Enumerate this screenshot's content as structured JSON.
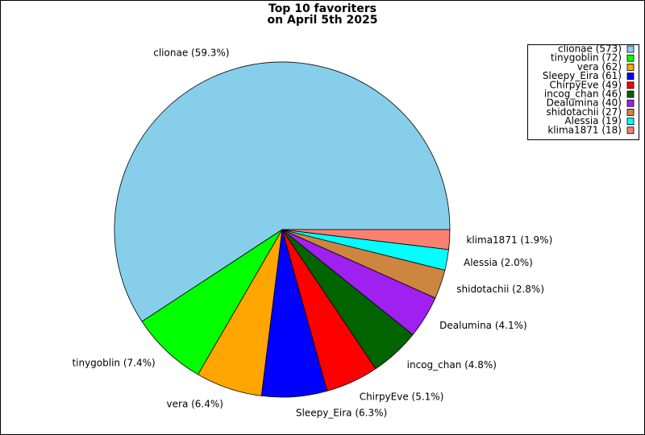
{
  "chart_data": {
    "type": "pie",
    "title": [
      "Top 10 favoriters",
      "on April 5th 2025"
    ],
    "categories": [
      "clionae",
      "tinygoblin",
      "vera",
      "Sleepy_Eira",
      "ChirpyEve",
      "incog_chan",
      "Dealumina",
      "shidotachii",
      "Alessia",
      "klima1871"
    ],
    "values": [
      59.3,
      7.4,
      6.4,
      6.3,
      5.1,
      4.8,
      4.1,
      2.8,
      2.0,
      1.9
    ],
    "value_labels": [
      "clionae (59.3%)",
      "tinygoblin (7.4%)",
      "vera (6.4%)",
      "Sleepy_Eira (6.3%)",
      "ChirpyEve (5.1%)",
      "incog_chan (4.8%)",
      "Dealumina (4.1%)",
      "shidotachii (2.8%)",
      "Alessia (2.0%)",
      "klima1871 (1.9%)"
    ],
    "legend": [
      "clionae (573)",
      "tinygoblin (72)",
      "vera (62)",
      "Sleepy_Eira (61)",
      "ChirpyEve (49)",
      "incog_chan (46)",
      "Dealumina (40)",
      "shidotachii (27)",
      "Alessia (19)",
      "klima1871 (18)"
    ],
    "colors": [
      "#87ceeb",
      "#00ff00",
      "#ffa500",
      "#0000ff",
      "#ff0000",
      "#006400",
      "#a020f0",
      "#cd853f",
      "#00ffff",
      "#fa8072"
    ],
    "legend_position": "upper right"
  }
}
